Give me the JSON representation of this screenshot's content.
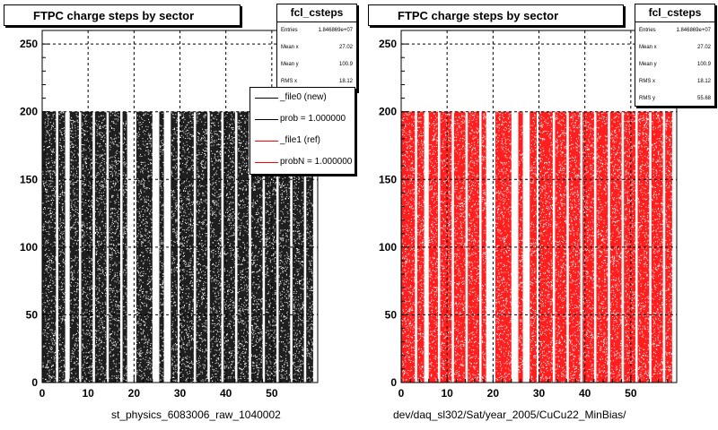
{
  "left_panel": {
    "title": "FTPC charge steps by sector",
    "stats": {
      "name": "fcl_csteps",
      "rows": [
        {
          "label": "Entries",
          "value": "1.846869e+07"
        },
        {
          "label": "Mean x",
          "value": "27.02"
        },
        {
          "label": "Mean y",
          "value": "100.9"
        },
        {
          "label": "RMS x",
          "value": "18.12"
        }
      ]
    },
    "legend": [
      {
        "label": "_file0 (new)",
        "color": "#000000"
      },
      {
        "label": "prob = 1.000000",
        "color": "#000000"
      },
      {
        "label": "_file1 (ref)",
        "color": "#ff0000"
      },
      {
        "label": "probN = 1.000000",
        "color": "#ff0000"
      }
    ],
    "footer": "st_physics_6083006_raw_1040002"
  },
  "right_panel": {
    "title": "FTPC charge steps by sector",
    "stats": {
      "name": "fcl_csteps",
      "rows": [
        {
          "label": "Entries",
          "value": "1.846869e+07"
        },
        {
          "label": "Mean x",
          "value": "27.02"
        },
        {
          "label": "Mean y",
          "value": "100.9"
        },
        {
          "label": "RMS x",
          "value": "18.12"
        },
        {
          "label": "RMS y",
          "value": "55.68"
        }
      ]
    },
    "footer": "dev/daq_sl302/Sat/year_2005/CuCu22_MinBias/"
  },
  "chart_data": [
    {
      "type": "scatter",
      "title": "FTPC charge steps by sector",
      "xlim": [
        0,
        60
      ],
      "ylim": [
        0,
        260
      ],
      "xticks": [
        0,
        10,
        20,
        30,
        40,
        50
      ],
      "yticks": [
        0,
        50,
        100,
        150,
        200,
        250
      ],
      "grid": true,
      "marker_color": "#000000",
      "y_max_data": 200,
      "sector_bands": [
        [
          0,
          3
        ],
        [
          3.5,
          5
        ],
        [
          6,
          8
        ],
        [
          8.5,
          11
        ],
        [
          11.5,
          14
        ],
        [
          14.5,
          17
        ],
        [
          17.5,
          18.5
        ],
        [
          20.5,
          24
        ],
        [
          25.5,
          26.5
        ],
        [
          28,
          29.5
        ],
        [
          30,
          33
        ],
        [
          33.5,
          36
        ],
        [
          36.5,
          39
        ],
        [
          39.5,
          42
        ],
        [
          42.5,
          45
        ],
        [
          45.5,
          48
        ],
        [
          48.5,
          51
        ],
        [
          51.5,
          54
        ],
        [
          54.5,
          57
        ],
        [
          57.5,
          59
        ]
      ]
    },
    {
      "type": "scatter",
      "title": "FTPC charge steps by sector",
      "xlim": [
        0,
        60
      ],
      "ylim": [
        0,
        260
      ],
      "xticks": [
        0,
        10,
        20,
        30,
        40,
        50
      ],
      "yticks": [
        0,
        50,
        100,
        150,
        200,
        250
      ],
      "grid": true,
      "marker_color": "#ff0000",
      "y_max_data": 200,
      "sector_bands": [
        [
          0,
          3
        ],
        [
          3.5,
          5
        ],
        [
          6,
          8
        ],
        [
          8.5,
          11
        ],
        [
          11.5,
          14
        ],
        [
          14.5,
          17
        ],
        [
          17.5,
          18.5
        ],
        [
          20.5,
          24
        ],
        [
          25.5,
          26.5
        ],
        [
          28,
          29.5
        ],
        [
          30,
          33
        ],
        [
          33.5,
          36
        ],
        [
          36.5,
          39
        ],
        [
          39.5,
          42
        ],
        [
          42.5,
          45
        ],
        [
          45.5,
          48
        ],
        [
          48.5,
          51
        ],
        [
          51.5,
          54
        ],
        [
          54.5,
          57
        ],
        [
          57.5,
          59
        ]
      ]
    }
  ]
}
